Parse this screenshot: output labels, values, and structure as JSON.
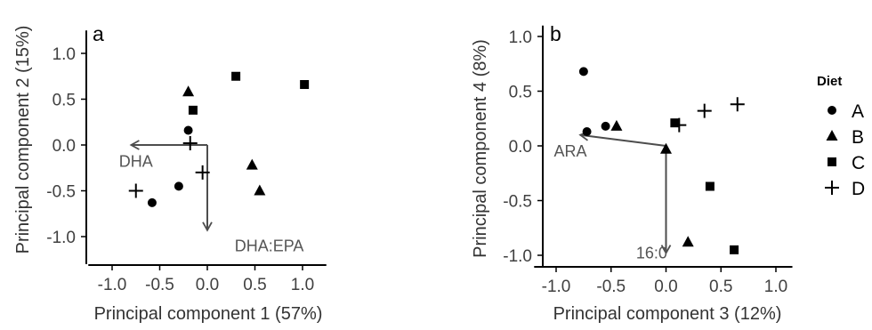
{
  "chart_data": [
    {
      "type": "scatter",
      "panel": "a",
      "xlabel": "Principal component 1 (57%)",
      "ylabel": "Principal component 2 (15%)",
      "xlim": [
        -1.25,
        1.25
      ],
      "ylim": [
        -1.3,
        1.25
      ],
      "xticks": [
        -1.0,
        -0.5,
        0.0,
        0.5,
        1.0
      ],
      "xtick_labels": [
        "-1.0",
        "-0.5",
        "0.0",
        "0.5",
        "1.0"
      ],
      "yticks": [
        -1.0,
        -0.5,
        0.0,
        0.5,
        1.0
      ],
      "ytick_labels": [
        "-1.0",
        "-0.5",
        "0.0",
        "0.5",
        "1.0"
      ],
      "grid": false,
      "series": [
        {
          "name": "A",
          "marker": "circle",
          "points": [
            [
              -0.58,
              -0.63
            ],
            [
              -0.3,
              -0.45
            ],
            [
              -0.2,
              0.16
            ]
          ]
        },
        {
          "name": "B",
          "marker": "triangle",
          "points": [
            [
              -0.2,
              0.58
            ],
            [
              0.47,
              -0.22
            ],
            [
              0.55,
              -0.5
            ]
          ]
        },
        {
          "name": "C",
          "marker": "square",
          "points": [
            [
              -0.15,
              0.38
            ],
            [
              0.3,
              0.75
            ],
            [
              1.02,
              0.66
            ]
          ]
        },
        {
          "name": "D",
          "marker": "plus",
          "points": [
            [
              -0.75,
              -0.5
            ],
            [
              -0.18,
              0.02
            ],
            [
              -0.05,
              -0.3
            ]
          ]
        }
      ],
      "vectors": [
        {
          "label": "DHA",
          "to": [
            -0.8,
            0.0
          ],
          "label_at": [
            -0.75,
            -0.18
          ]
        },
        {
          "label": "DHA:EPA",
          "to": [
            0.0,
            -0.93
          ],
          "label_at": [
            0.65,
            -1.1
          ]
        }
      ]
    },
    {
      "type": "scatter",
      "panel": "b",
      "xlabel": "Principal component 3 (12%)",
      "ylabel": "Principal component 4 (8%)",
      "xlim": [
        -1.2,
        1.15
      ],
      "ylim": [
        -1.1,
        1.1
      ],
      "xticks": [
        -1.0,
        -0.5,
        0.0,
        0.5,
        1.0
      ],
      "xtick_labels": [
        "-1.0",
        "-0.5",
        "0.0",
        "0.5",
        "1.0"
      ],
      "yticks": [
        -1.0,
        -0.5,
        0.0,
        0.5,
        1.0
      ],
      "ytick_labels": [
        "-1.0",
        "-0.5",
        "0.0",
        "0.5",
        "1.0"
      ],
      "grid": false,
      "series": [
        {
          "name": "A",
          "marker": "circle",
          "points": [
            [
              -0.75,
              0.68
            ],
            [
              -0.72,
              0.13
            ],
            [
              -0.55,
              0.18
            ]
          ]
        },
        {
          "name": "B",
          "marker": "triangle",
          "points": [
            [
              -0.45,
              0.18
            ],
            [
              0.0,
              -0.03
            ],
            [
              0.2,
              -0.88
            ]
          ]
        },
        {
          "name": "C",
          "marker": "square",
          "points": [
            [
              0.08,
              0.21
            ],
            [
              0.4,
              -0.37
            ],
            [
              0.62,
              -0.95
            ]
          ]
        },
        {
          "name": "D",
          "marker": "plus",
          "points": [
            [
              0.12,
              0.19
            ],
            [
              0.35,
              0.32
            ],
            [
              0.65,
              0.38
            ]
          ]
        }
      ],
      "vectors": [
        {
          "label": "ARA",
          "to": [
            -0.78,
            0.1
          ],
          "label_at": [
            -0.87,
            -0.05
          ]
        },
        {
          "label": "16:0",
          "to": [
            0.0,
            -0.98
          ],
          "label_at": [
            -0.13,
            -0.98
          ]
        }
      ]
    }
  ],
  "legend": {
    "title": "Diet",
    "placement": "right",
    "entries": [
      {
        "label": "A",
        "marker": "circle"
      },
      {
        "label": "B",
        "marker": "triangle"
      },
      {
        "label": "C",
        "marker": "square"
      },
      {
        "label": "D",
        "marker": "plus"
      }
    ]
  },
  "colors": {
    "points": "#000000",
    "axis": "#000000",
    "vectors": "#4d4d4d",
    "vector_labels": "#555555"
  }
}
